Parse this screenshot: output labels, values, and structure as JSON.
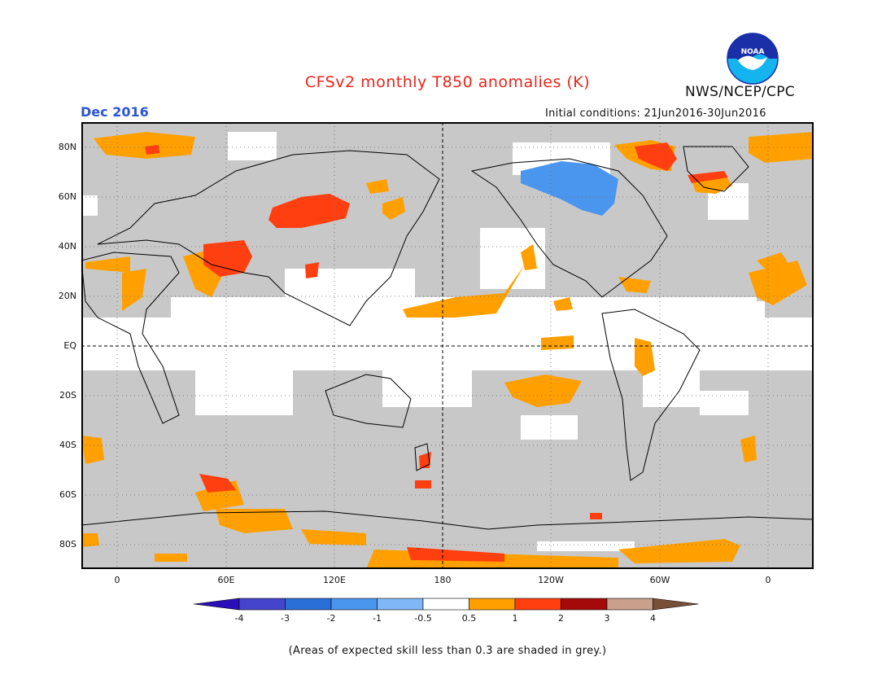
{
  "header": {
    "title": "CFSv2 monthly T850 anomalies (K)",
    "month": "Dec 2016",
    "initial_conditions": "Initial conditions: 21Jun2016-30Jun2016",
    "agency": "NWS/NCEP/CPC",
    "logo_text": "NOAA"
  },
  "axes": {
    "y_labels": [
      "80N",
      "60N",
      "40N",
      "20N",
      "EQ",
      "20S",
      "40S",
      "60S",
      "80S"
    ],
    "x_labels": [
      "0",
      "60E",
      "120E",
      "180",
      "120W",
      "60W",
      "0"
    ]
  },
  "legend": {
    "tick_labels": [
      "-4",
      "-3",
      "-2",
      "-1",
      "-0.5",
      "0.5",
      "1",
      "2",
      "3",
      "4"
    ],
    "colors": [
      "#2a0fb8",
      "#4444cc",
      "#2a6fd8",
      "#4a96ee",
      "#80b8f5",
      "#ffffff",
      "#ffa000",
      "#ff3f10",
      "#a50a0a",
      "#c9a08c",
      "#7a4f38"
    ]
  },
  "colors": {
    "grey_shading": "#c8c8c8",
    "title": "#e8261c",
    "month": "#2b54d6"
  },
  "footnote": "(Areas of expected skill less than 0.3 are shaded in grey.)"
}
